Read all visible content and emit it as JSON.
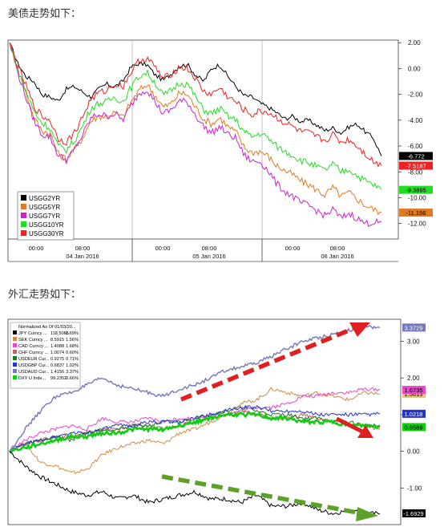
{
  "captions": {
    "top": "美债走势如下：",
    "bottom": "外汇走势如下："
  },
  "chart_data": [
    {
      "type": "line",
      "x_labels": [
        {
          "t": "00:00",
          "day": ""
        },
        {
          "t": "08:00",
          "day": "04 Jan 2016"
        },
        {
          "t": "00:00",
          "day": ""
        },
        {
          "t": "08:00",
          "day": "05 Jan 2016"
        },
        {
          "t": "00:00",
          "day": ""
        },
        {
          "t": "08:00",
          "day": "06 Jan 2016"
        }
      ],
      "y_ticks": [
        "2.00",
        "0.00",
        "-2.00",
        "-4.00",
        "-6.00",
        "-8.00",
        "-10.00",
        "-12.00"
      ],
      "ylim": [
        -13.2,
        2.2
      ],
      "grid": false,
      "legend_position": "bottom-left",
      "series": [
        {
          "name": "USGG2YR",
          "color": "#000000",
          "last": "-6.772",
          "tag_bg": "#000000",
          "tag_fg": "#ffffff",
          "values": [
            2.0,
            0.4,
            -0.6,
            -1.0,
            -2.0,
            -2.2,
            -2.5,
            -1.6,
            -1.4,
            -1.8,
            -2.2,
            -1.6,
            -1.2,
            -1.4,
            -1.0,
            0.1,
            0.4,
            0.3,
            -0.5,
            -0.9,
            -0.4,
            0.2,
            0.3,
            -0.5,
            -1.0,
            0.0,
            0.3,
            -0.6,
            -1.4,
            -2.1,
            -2.2,
            -2.7,
            -3.0,
            -3.4,
            -3.9,
            -3.7,
            -4.1,
            -4.0,
            -4.4,
            -4.8,
            -4.6,
            -5.0,
            -4.5,
            -4.3,
            -4.9,
            -5.4,
            -6.772
          ]
        },
        {
          "name": "USGG5YR",
          "color": "#e07a20",
          "last": "-11.156",
          "tag_bg": "#e07a20",
          "tag_fg": "#000000",
          "values": [
            2.0,
            0.0,
            -1.9,
            -3.8,
            -4.8,
            -5.0,
            -6.6,
            -7.0,
            -6.3,
            -5.4,
            -4.1,
            -3.7,
            -3.7,
            -3.4,
            -3.8,
            -2.6,
            -1.7,
            -1.2,
            -2.1,
            -3.0,
            -2.7,
            -1.9,
            -2.0,
            -3.0,
            -3.9,
            -4.3,
            -3.8,
            -4.5,
            -4.9,
            -6.1,
            -6.5,
            -6.4,
            -6.8,
            -7.5,
            -7.9,
            -8.2,
            -8.7,
            -9.0,
            -9.4,
            -9.8,
            -9.2,
            -9.9,
            -9.6,
            -10.1,
            -10.6,
            -10.9,
            -11.156
          ]
        },
        {
          "name": "USGG7YR",
          "color": "#cc22cc",
          "last": "",
          "tag_bg": "",
          "tag_fg": "",
          "values": [
            2.0,
            -0.3,
            -2.2,
            -4.0,
            -5.1,
            -5.3,
            -6.7,
            -7.1,
            -6.3,
            -5.2,
            -3.9,
            -3.5,
            -3.7,
            -3.5,
            -4.0,
            -2.9,
            -1.9,
            -1.6,
            -2.6,
            -3.5,
            -3.2,
            -2.5,
            -2.6,
            -3.6,
            -4.5,
            -5.0,
            -4.5,
            -5.1,
            -5.4,
            -6.7,
            -7.2,
            -7.2,
            -7.9,
            -8.9,
            -9.5,
            -9.9,
            -10.4,
            -10.6,
            -11.0,
            -11.4,
            -10.9,
            -11.6,
            -11.2,
            -11.6,
            -12.0,
            -11.9,
            -11.9
          ]
        },
        {
          "name": "USGG10YR",
          "color": "#22dd22",
          "last": "-9.3895",
          "tag_bg": "#22dd22",
          "tag_fg": "#000000",
          "values": [
            2.0,
            0.0,
            -1.7,
            -3.3,
            -4.2,
            -4.6,
            -6.0,
            -6.3,
            -5.6,
            -4.5,
            -3.1,
            -2.7,
            -2.6,
            -2.2,
            -2.6,
            -1.5,
            -0.6,
            -0.3,
            -1.1,
            -2.1,
            -1.7,
            -1.1,
            -1.2,
            -2.2,
            -3.2,
            -3.5,
            -3.1,
            -3.7,
            -4.0,
            -4.9,
            -5.3,
            -5.0,
            -5.4,
            -6.0,
            -6.4,
            -6.7,
            -7.1,
            -7.3,
            -7.6,
            -7.9,
            -7.4,
            -8.0,
            -7.8,
            -8.3,
            -8.7,
            -9.0,
            -9.3895
          ]
        },
        {
          "name": "USGG30YR",
          "color": "#ee2222",
          "last": "-7.5187",
          "tag_bg": "#ee2222",
          "tag_fg": "#ffffff",
          "values": [
            2.0,
            0.2,
            -1.3,
            -2.9,
            -3.7,
            -4.0,
            -5.4,
            -5.7,
            -5.0,
            -3.8,
            -2.4,
            -1.9,
            -1.7,
            -1.2,
            -1.4,
            -0.3,
            0.6,
            0.8,
            0.1,
            -0.8,
            -0.4,
            0.1,
            0.0,
            -0.8,
            -1.8,
            -2.0,
            -1.5,
            -2.2,
            -2.6,
            -3.2,
            -3.6,
            -3.3,
            -3.4,
            -3.8,
            -4.2,
            -4.5,
            -4.9,
            -5.0,
            -5.3,
            -5.6,
            -5.1,
            -5.7,
            -5.5,
            -6.0,
            -6.6,
            -7.2,
            -7.5187
          ]
        }
      ]
    },
    {
      "type": "line",
      "legend_title": "Normalized As Of 01/03/20...",
      "y_ticks": [
        "3.00",
        "2.00",
        "1.00",
        "0.00",
        "-1.00"
      ],
      "ylim": [
        -2.0,
        3.6
      ],
      "grid": false,
      "legend_position": "top-left",
      "series": [
        {
          "name": "JPY Curncy ...",
          "value": "118.5055",
          "change": "-1.69%",
          "color": "#000000",
          "last": "-1.6929",
          "tag_bg": "#000000",
          "tag_fg": "#ffffff",
          "values": [
            0.0,
            -0.4,
            -0.7,
            -0.9,
            -1.1,
            -1.2,
            -1.1,
            -1.3,
            -1.2,
            -1.4,
            -1.3,
            -1.2,
            -1.1,
            -1.3,
            -1.3,
            -1.4,
            -1.2,
            -1.5,
            -1.5,
            -1.4,
            -1.6,
            -1.7,
            -1.6,
            -1.7,
            -1.7
          ]
        },
        {
          "name": "SEK Curncy ...",
          "value": "8.5915",
          "change": "1.56%",
          "color": "#d58a40",
          "last": "1.5613",
          "tag_bg": "#e8c57a",
          "tag_fg": "#000000",
          "values": [
            0.0,
            0.2,
            -0.3,
            -0.4,
            -0.6,
            -0.5,
            -0.1,
            0.1,
            0.2,
            0.3,
            0.2,
            0.5,
            0.6,
            0.8,
            1.0,
            1.3,
            1.4,
            1.7,
            1.6,
            1.5,
            1.6,
            1.5,
            1.4,
            1.6,
            1.56
          ]
        },
        {
          "name": "CAD Curncy ...",
          "value": "1.4088",
          "change": "1.68%",
          "color": "#ee44cc",
          "last": "1.6735",
          "tag_bg": "#ee44cc",
          "tag_fg": "#000000",
          "values": [
            0.0,
            0.3,
            0.5,
            0.6,
            0.7,
            0.6,
            0.9,
            0.8,
            0.8,
            0.9,
            0.8,
            0.9,
            0.9,
            1.0,
            1.0,
            1.1,
            1.2,
            1.2,
            1.3,
            1.5,
            1.5,
            1.6,
            1.6,
            1.7,
            1.68
          ]
        },
        {
          "name": "CHF Curncy ...",
          "value": "1.0074",
          "change": "0.60%",
          "color": "#bb6666",
          "last": "",
          "tag_bg": "",
          "tag_fg": "",
          "values": [
            0.0,
            0.2,
            0.3,
            0.4,
            0.4,
            0.5,
            0.6,
            0.6,
            0.7,
            0.7,
            0.6,
            0.7,
            0.8,
            0.9,
            1.0,
            1.1,
            1.0,
            0.9,
            0.9,
            1.0,
            0.9,
            0.8,
            0.7,
            0.7,
            0.6
          ]
        },
        {
          "name": "USDEUR Cur...",
          "value": "0.9275",
          "change": "0.71%",
          "color": "#227722",
          "last": "",
          "tag_bg": "",
          "tag_fg": "",
          "values": [
            0.0,
            0.2,
            0.3,
            0.4,
            0.3,
            0.5,
            0.6,
            0.6,
            0.7,
            0.7,
            0.8,
            0.8,
            0.9,
            1.0,
            1.1,
            1.2,
            1.1,
            1.0,
            1.0,
            0.9,
            0.9,
            0.8,
            0.8,
            0.7,
            0.7
          ]
        },
        {
          "name": "USDGBP Cur...",
          "value": "0.6837",
          "change": "1.02%",
          "color": "#2233cc",
          "last": "1.0218",
          "tag_bg": "#2233cc",
          "tag_fg": "#ffffff",
          "values": [
            0.0,
            0.2,
            0.3,
            0.4,
            0.5,
            0.5,
            0.6,
            0.7,
            0.7,
            0.8,
            0.8,
            0.8,
            0.9,
            1.0,
            1.1,
            1.2,
            1.2,
            1.1,
            1.1,
            1.1,
            1.0,
            1.0,
            1.0,
            1.0,
            1.02
          ]
        },
        {
          "name": "USDAUD Cur...",
          "value": "1.4156",
          "change": "3.37%",
          "color": "#7777bb",
          "last": "3.3729",
          "tag_bg": "#7777bb",
          "tag_fg": "#ffffff",
          "values": [
            0.0,
            0.6,
            1.1,
            1.5,
            1.6,
            1.8,
            2.0,
            1.8,
            1.7,
            1.6,
            1.5,
            1.7,
            1.8,
            2.0,
            2.2,
            2.3,
            2.4,
            2.6,
            2.8,
            3.0,
            3.1,
            3.2,
            3.3,
            3.4,
            3.37
          ]
        },
        {
          "name": "DXY U Inde...",
          "value": "99.2352",
          "change": "0.66%",
          "color": "#11cc11",
          "last": "0.6589",
          "tag_bg": "#11cc11",
          "tag_fg": "#000000",
          "values": [
            0.0,
            0.1,
            0.2,
            0.3,
            0.4,
            0.4,
            0.5,
            0.5,
            0.6,
            0.6,
            0.6,
            0.7,
            0.8,
            0.9,
            1.0,
            1.0,
            1.0,
            0.9,
            0.9,
            0.8,
            0.8,
            0.8,
            0.7,
            0.7,
            0.66
          ]
        }
      ]
    }
  ]
}
